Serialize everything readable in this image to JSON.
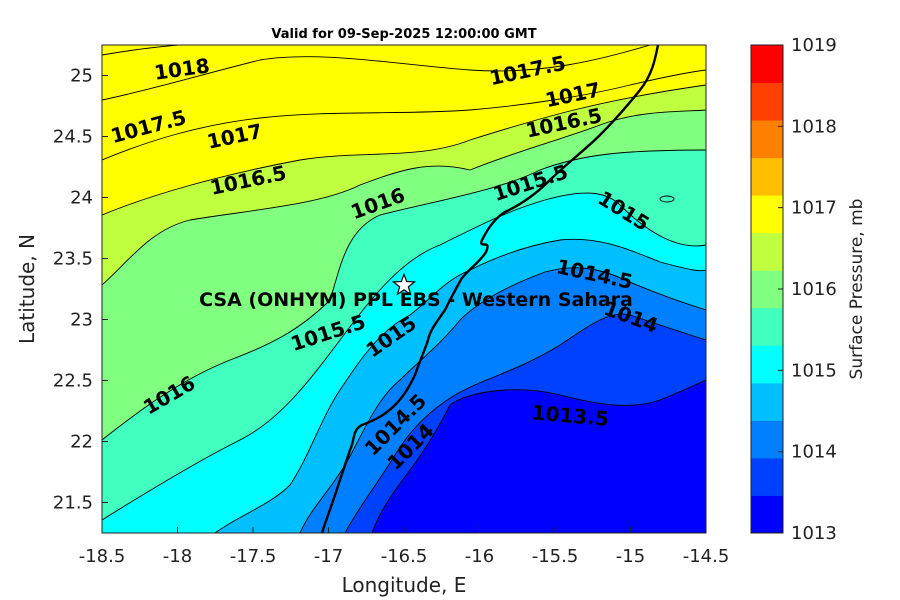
{
  "title": "Valid for 09-Sep-2025 12:00:00 GMT",
  "xlabel": "Longitude, E",
  "ylabel": "Latitude, N",
  "x_ticks": [
    "-18.5",
    "-18",
    "-17.5",
    "-17",
    "-16.5",
    "-16",
    "-15.5",
    "-15",
    "-14.5"
  ],
  "y_ticks": [
    "21.5",
    "22",
    "22.5",
    "23",
    "23.5",
    "24",
    "24.5",
    "25"
  ],
  "station_label": "CSA (ONHYM) PPL EBS  - Western Sahara",
  "station_lon": -16.5,
  "station_lat": 23.28,
  "colorbar": {
    "label": "Surface Pressure, mb",
    "ticks": [
      "1013",
      "1014",
      "1015",
      "1016",
      "1017",
      "1018",
      "1019"
    ],
    "range": [
      1013,
      1019
    ],
    "colors": [
      "#0000ff",
      "#0040ff",
      "#0080ff",
      "#00bfff",
      "#00ffff",
      "#40ffbf",
      "#80ff80",
      "#bfff40",
      "#ffff00",
      "#ffbf00",
      "#ff8000",
      "#ff4000",
      "#ff0000"
    ]
  },
  "contour_labels": [
    {
      "text": "1018",
      "lon": -17.97,
      "lat": 25.04,
      "rot": -8
    },
    {
      "text": "1017.5",
      "lon": -18.19,
      "lat": 24.57,
      "rot": -15
    },
    {
      "text": "1017",
      "lon": -17.62,
      "lat": 24.49,
      "rot": -12
    },
    {
      "text": "1016.5",
      "lon": -17.53,
      "lat": 24.13,
      "rot": -12
    },
    {
      "text": "1016",
      "lon": -16.67,
      "lat": 23.94,
      "rot": -20
    },
    {
      "text": "1017.5",
      "lon": -15.68,
      "lat": 25.03,
      "rot": -12
    },
    {
      "text": "1017",
      "lon": -15.38,
      "lat": 24.83,
      "rot": -12
    },
    {
      "text": "1016.5",
      "lon": -15.44,
      "lat": 24.6,
      "rot": -12
    },
    {
      "text": "1015.5",
      "lon": -15.66,
      "lat": 24.11,
      "rot": -18
    },
    {
      "text": "1015",
      "lon": -15.05,
      "lat": 23.88,
      "rot": 32
    },
    {
      "text": "1014.5",
      "lon": -15.24,
      "lat": 23.36,
      "rot": 12
    },
    {
      "text": "1014",
      "lon": -15.0,
      "lat": 23.01,
      "rot": 20
    },
    {
      "text": "1013.5",
      "lon": -15.4,
      "lat": 22.2,
      "rot": 5
    },
    {
      "text": "1015.5",
      "lon": -17.0,
      "lat": 22.88,
      "rot": -18
    },
    {
      "text": "1015",
      "lon": -16.58,
      "lat": 22.85,
      "rot": -35
    },
    {
      "text": "1016",
      "lon": -18.05,
      "lat": 22.37,
      "rot": -30
    },
    {
      "text": "1014.5",
      "lon": -16.55,
      "lat": 22.13,
      "rot": -45
    },
    {
      "text": "1014",
      "lon": -16.45,
      "lat": 21.95,
      "rot": -45
    }
  ]
}
